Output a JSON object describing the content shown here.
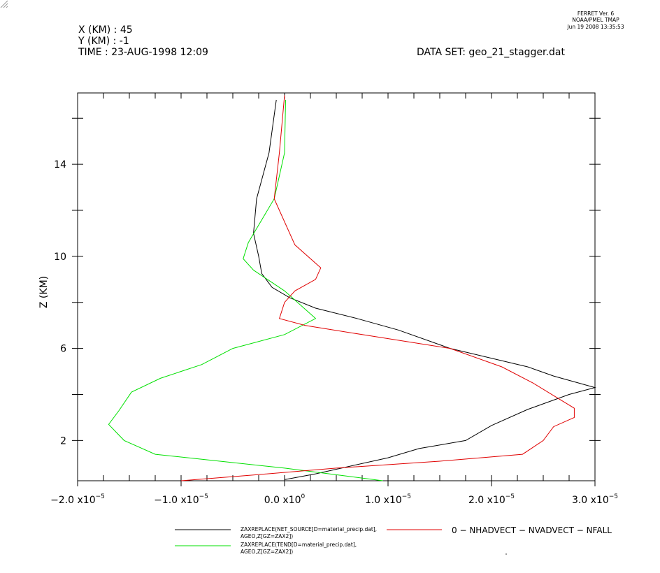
{
  "header": {
    "x_line": "X (KM) : 45",
    "y_line": "Y (KM) : -1",
    "time_line": "TIME : 23-AUG-1998 12:09",
    "dataset_line": "DATA SET: geo_21_stagger.dat",
    "ferret_line1": "FERRET Ver. 6",
    "ferret_line2": "NOAA/PMEL TMAP",
    "ferret_line3": "Jun 19 2008 13:35:53"
  },
  "colors": {
    "black": "#000000",
    "red": "#e00000",
    "green": "#00e000"
  },
  "chart_data": {
    "type": "line",
    "orientation": "vertical-profile",
    "xlabel": "",
    "ylabel": "Z (KM)",
    "xlim": [
      -2e-05,
      3e-05
    ],
    "ylim": [
      0.25,
      17.1
    ],
    "x_ticks": [
      {
        "value": -2e-05,
        "mant": "−2.0 x10",
        "exp": "−5"
      },
      {
        "value": -1e-05,
        "mant": "−1.0 x10",
        "exp": "−5"
      },
      {
        "value": 0.0,
        "mant": "0.0 x10",
        "exp": "0"
      },
      {
        "value": 1e-05,
        "mant": "1.0 x10",
        "exp": "−5"
      },
      {
        "value": 2e-05,
        "mant": "2.0 x10",
        "exp": "−5"
      },
      {
        "value": 3e-05,
        "mant": "3.0 x10",
        "exp": "−5"
      }
    ],
    "x_minor_step": 2.5e-06,
    "y_ticks": [
      {
        "value": 2,
        "label": "2"
      },
      {
        "value": 6,
        "label": "6"
      },
      {
        "value": 10,
        "label": "10"
      },
      {
        "value": 14,
        "label": "14"
      }
    ],
    "y_minor_step": 2,
    "series": [
      {
        "name": "ZAXREPLACE(NET_SOURCE[D=material_precip.dat], AGEO,Z[GZ=ZAX2])",
        "legend_lines": [
          "ZAXREPLACE(NET_SOURCE[D=material_precip.dat],",
          "AGEO,Z[GZ=ZAX2])"
        ],
        "color": "black",
        "points": [
          [
            0.0,
            0.3
          ],
          [
            3e-06,
            0.55
          ],
          [
            6e-06,
            0.85
          ],
          [
            1e-05,
            1.25
          ],
          [
            1.3e-05,
            1.65
          ],
          [
            1.75e-05,
            2.0
          ],
          [
            2e-05,
            2.65
          ],
          [
            2.35e-05,
            3.35
          ],
          [
            2.75e-05,
            4.0
          ],
          [
            3e-05,
            4.3
          ],
          [
            2.6e-05,
            4.8
          ],
          [
            2.35e-05,
            5.2
          ],
          [
            1.6e-05,
            6.0
          ],
          [
            1.1e-05,
            6.8
          ],
          [
            7e-06,
            7.3
          ],
          [
            3e-06,
            7.75
          ],
          [
            5e-07,
            8.2
          ],
          [
            -1.2e-06,
            8.65
          ],
          [
            -2.2e-06,
            9.25
          ],
          [
            -2.5e-06,
            10.0
          ],
          [
            -3e-06,
            11.0
          ],
          [
            -2.7e-06,
            12.5
          ],
          [
            -1.5e-06,
            14.5
          ],
          [
            -8e-07,
            16.8
          ]
        ]
      },
      {
        "name": "ZAXREPLACE(TEND[D=material_precip.dat], AGEO,Z[GZ=ZAX2])",
        "legend_lines": [
          "ZAXREPLACE(TEND[D=material_precip.dat],",
          "AGEO,Z[GZ=ZAX2])"
        ],
        "color": "green",
        "points": [
          [
            9.5e-06,
            0.25
          ],
          [
            0.0,
            0.8
          ],
          [
            -1.25e-05,
            1.4
          ],
          [
            -1.55e-05,
            2.0
          ],
          [
            -1.7e-05,
            2.7
          ],
          [
            -1.6e-05,
            3.3
          ],
          [
            -1.48e-05,
            4.1
          ],
          [
            -1.2e-05,
            4.7
          ],
          [
            -8e-06,
            5.3
          ],
          [
            -5e-06,
            6.0
          ],
          [
            0.0,
            6.6
          ],
          [
            3e-06,
            7.3
          ],
          [
            0.0,
            8.5
          ],
          [
            -3e-06,
            9.4
          ],
          [
            -4e-06,
            9.9
          ],
          [
            -3.5e-06,
            10.6
          ],
          [
            -1e-06,
            12.5
          ],
          [
            0.0,
            14.5
          ],
          [
            1e-07,
            16.8
          ]
        ]
      },
      {
        "name": "0 - NHADVECT - NVADVECT - NFALL",
        "legend_lines": [
          "0 − NHADVECT − NVADVECT − NFALL"
        ],
        "color": "red",
        "points": [
          [
            -1e-05,
            0.25
          ],
          [
            -3e-06,
            0.5
          ],
          [
            5e-06,
            0.8
          ],
          [
            1.5e-05,
            1.1
          ],
          [
            2.3e-05,
            1.4
          ],
          [
            2.5e-05,
            2.0
          ],
          [
            2.6e-05,
            2.6
          ],
          [
            2.8e-05,
            3.0
          ],
          [
            2.8e-05,
            3.4
          ],
          [
            2.4e-05,
            4.5
          ],
          [
            2.1e-05,
            5.2
          ],
          [
            1.6e-05,
            6.0
          ],
          [
            7.5e-06,
            6.6
          ],
          [
            2e-06,
            7.0
          ],
          [
            -5e-07,
            7.3
          ],
          [
            0.0,
            8.0
          ],
          [
            1e-06,
            8.5
          ],
          [
            3e-06,
            9.0
          ],
          [
            3.5e-06,
            9.5
          ],
          [
            1e-06,
            10.5
          ],
          [
            -1e-06,
            12.5
          ],
          [
            -5e-07,
            14.5
          ],
          [
            0.0,
            17.0
          ]
        ]
      }
    ],
    "grid": false,
    "legend_position": "bottom"
  }
}
